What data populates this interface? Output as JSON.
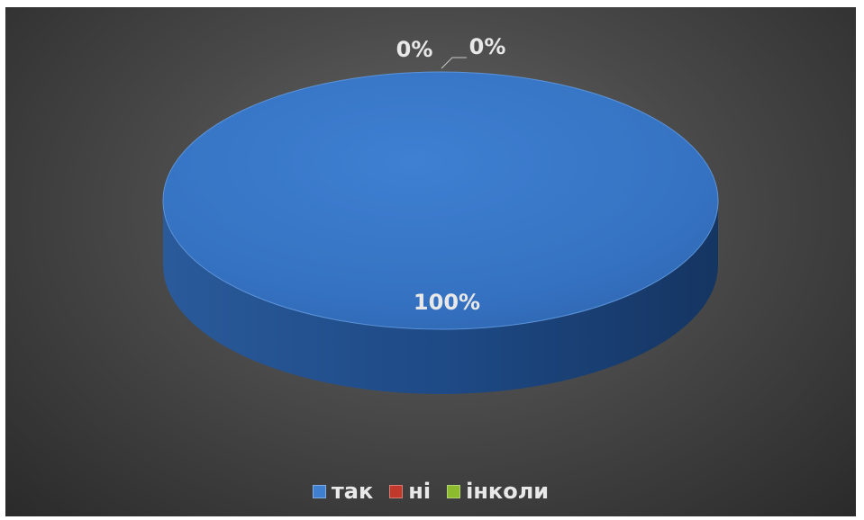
{
  "chart_data": {
    "type": "pie",
    "style": "3d",
    "categories": [
      "так",
      "ні",
      "інколи"
    ],
    "values": [
      100,
      0,
      0
    ],
    "data_labels": [
      "100%",
      "0%",
      "0%"
    ],
    "colors": [
      "#3f7fd0",
      "#c0392b",
      "#8dbb2e"
    ],
    "title": "",
    "legend_position": "bottom"
  }
}
